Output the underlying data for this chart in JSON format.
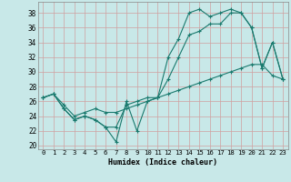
{
  "xlabel": "Humidex (Indice chaleur)",
  "bg_color": "#c8e8e8",
  "grid_color": "#aaaaaa",
  "line_color": "#1a7a6e",
  "xlim": [
    -0.5,
    23.5
  ],
  "ylim": [
    19.5,
    39.5
  ],
  "xticks": [
    0,
    1,
    2,
    3,
    4,
    5,
    6,
    7,
    8,
    9,
    10,
    11,
    12,
    13,
    14,
    15,
    16,
    17,
    18,
    19,
    20,
    21,
    22,
    23
  ],
  "yticks": [
    20,
    22,
    24,
    26,
    28,
    30,
    32,
    34,
    36,
    38
  ],
  "series1_x": [
    0,
    1,
    2,
    3,
    4,
    5,
    6,
    7,
    8,
    9,
    10,
    11,
    12,
    13,
    14,
    15,
    16,
    17,
    18,
    19,
    20,
    21,
    22,
    23
  ],
  "series1_y": [
    26.5,
    27.0,
    25.0,
    23.5,
    24.0,
    23.5,
    22.5,
    20.5,
    26.0,
    22.0,
    26.0,
    26.5,
    32.0,
    34.5,
    38.0,
    38.5,
    37.5,
    38.0,
    38.5,
    38.0,
    36.0,
    30.5,
    34.0,
    29.0
  ],
  "series2_x": [
    0,
    1,
    2,
    3,
    4,
    5,
    6,
    7,
    8,
    9,
    10,
    11,
    12,
    13,
    14,
    15,
    16,
    17,
    18,
    19,
    20,
    21,
    22,
    23
  ],
  "series2_y": [
    26.5,
    27.0,
    25.0,
    23.5,
    24.0,
    23.5,
    22.5,
    22.5,
    25.5,
    26.0,
    26.5,
    26.5,
    29.0,
    32.0,
    35.0,
    35.5,
    36.5,
    36.5,
    38.0,
    38.0,
    36.0,
    30.5,
    34.0,
    29.0
  ],
  "series3_x": [
    0,
    1,
    2,
    3,
    4,
    5,
    6,
    7,
    8,
    9,
    10,
    11,
    12,
    13,
    14,
    15,
    16,
    17,
    18,
    19,
    20,
    21,
    22,
    23
  ],
  "series3_y": [
    26.5,
    27.0,
    25.5,
    24.0,
    24.5,
    25.0,
    24.5,
    24.5,
    25.0,
    25.5,
    26.0,
    26.5,
    27.0,
    27.5,
    28.0,
    28.5,
    29.0,
    29.5,
    30.0,
    30.5,
    31.0,
    31.0,
    29.5,
    29.0
  ]
}
